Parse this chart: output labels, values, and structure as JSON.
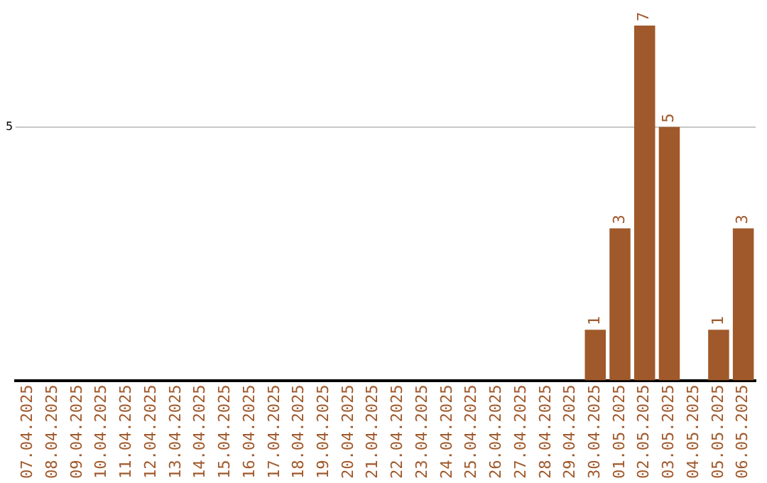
{
  "chart_data": {
    "type": "bar",
    "categories": [
      "07.04.2025",
      "08.04.2025",
      "09.04.2025",
      "10.04.2025",
      "11.04.2025",
      "12.04.2025",
      "13.04.2025",
      "14.04.2025",
      "15.04.2025",
      "16.04.2025",
      "17.04.2025",
      "18.04.2025",
      "19.04.2025",
      "20.04.2025",
      "21.04.2025",
      "22.04.2025",
      "23.04.2025",
      "24.04.2025",
      "25.04.2025",
      "26.04.2025",
      "27.04.2025",
      "28.04.2025",
      "29.04.2025",
      "30.04.2025",
      "01.05.2025",
      "02.05.2025",
      "03.05.2025",
      "04.05.2025",
      "05.05.2025",
      "06.05.2025"
    ],
    "values": [
      null,
      null,
      null,
      null,
      null,
      null,
      null,
      null,
      null,
      null,
      null,
      null,
      null,
      null,
      null,
      null,
      null,
      null,
      null,
      null,
      null,
      null,
      null,
      1,
      3,
      7,
      5,
      null,
      1,
      3
    ],
    "data_labels": true,
    "color": "#a0592b",
    "ylim": [
      0,
      7
    ],
    "yticks": [
      5
    ],
    "grid": "y",
    "legend": false
  }
}
